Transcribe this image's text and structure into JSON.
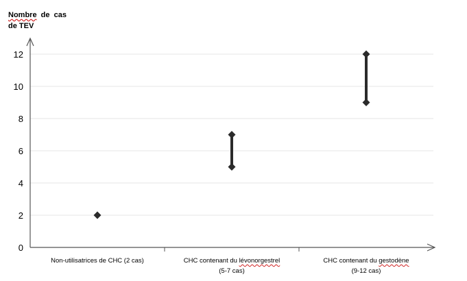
{
  "chart_data": {
    "type": "range",
    "ylabel_line1_word1": "Nombre",
    "ylabel_line1_rest": "  de  cas",
    "ylabel_line2": "de TEV",
    "ylim": [
      0,
      12
    ],
    "yticks": [
      0,
      2,
      4,
      6,
      8,
      10,
      12
    ],
    "grid": true,
    "categories": [
      {
        "line1_pre": "Non-utilisatrices de CHC (2 cas)",
        "line1_sq": "",
        "line2": "",
        "low": 2,
        "high": 2
      },
      {
        "line1_pre": "CHC contenant du ",
        "line1_sq": "lévonorgestrel",
        "line2": "(5-7 cas)",
        "low": 5,
        "high": 7
      },
      {
        "line1_pre": "CHC contenant du ",
        "line1_sq": "gestodène",
        "line2": "(9-12 cas)",
        "low": 9,
        "high": 12
      }
    ],
    "marker_color": "#2b2b2b",
    "grid_color": "#e6e6e6",
    "axis_color": "#555555"
  }
}
